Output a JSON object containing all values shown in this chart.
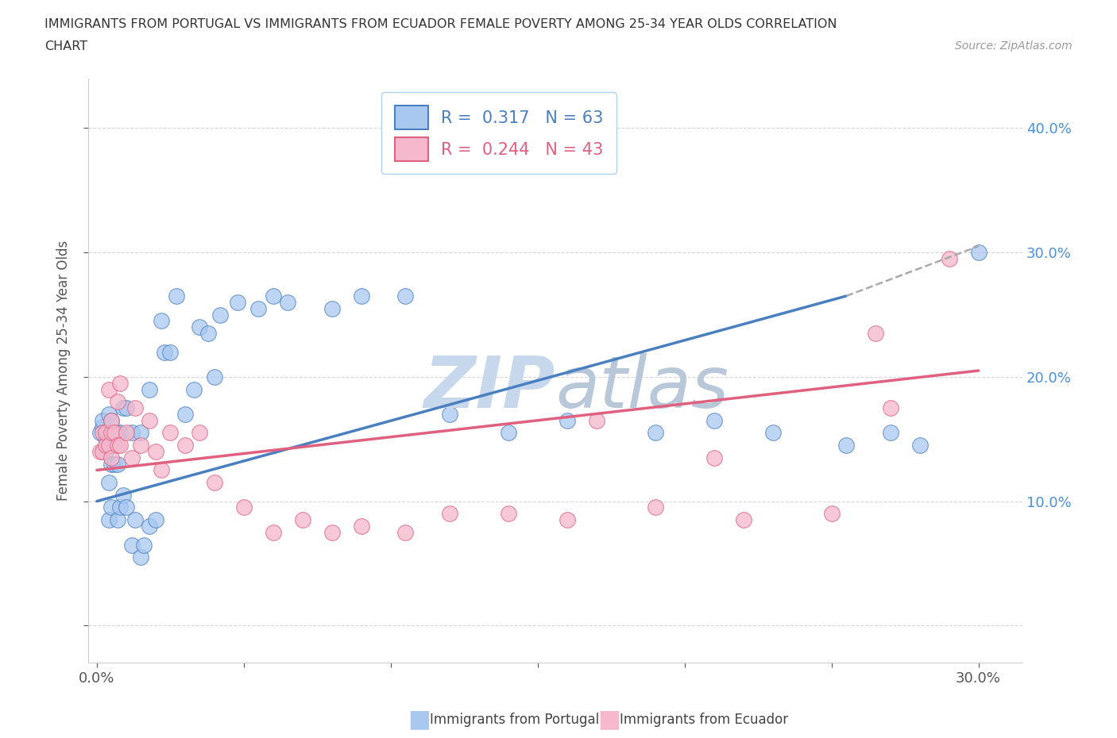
{
  "title_line1": "IMMIGRANTS FROM PORTUGAL VS IMMIGRANTS FROM ECUADOR FEMALE POVERTY AMONG 25-34 YEAR OLDS CORRELATION",
  "title_line2": "CHART",
  "source": "Source: ZipAtlas.com",
  "ylabel": "Female Poverty Among 25-34 Year Olds",
  "xlim": [
    -0.003,
    0.315
  ],
  "ylim": [
    -0.03,
    0.44
  ],
  "xticks": [
    0.0,
    0.05,
    0.1,
    0.15,
    0.2,
    0.25,
    0.3
  ],
  "xtick_labels": [
    "0.0%",
    "",
    "",
    "",
    "",
    "",
    "30.0%"
  ],
  "yticks": [
    0.0,
    0.1,
    0.2,
    0.3,
    0.4
  ],
  "ytick_labels_right": [
    "",
    "10.0%",
    "20.0%",
    "30.0%",
    "40.0%"
  ],
  "R_portugal": 0.317,
  "N_portugal": 63,
  "R_ecuador": 0.244,
  "N_ecuador": 43,
  "color_portugal": "#a8c8f0",
  "color_ecuador": "#f5b8cc",
  "line_color_portugal": "#4a7fc0",
  "line_color_ecuador": "#e06080",
  "watermark_color": "#c8d8ec",
  "port_line_start_x": 0.0,
  "port_line_start_y": 0.1,
  "port_line_solid_end_x": 0.255,
  "port_line_solid_end_y": 0.265,
  "port_line_dash_end_x": 0.3,
  "port_line_dash_end_y": 0.305,
  "ecu_line_start_x": 0.0,
  "ecu_line_start_y": 0.125,
  "ecu_line_end_x": 0.3,
  "ecu_line_end_y": 0.205,
  "portugal_x": [
    0.001,
    0.002,
    0.002,
    0.003,
    0.003,
    0.003,
    0.004,
    0.004,
    0.004,
    0.004,
    0.005,
    0.005,
    0.005,
    0.005,
    0.005,
    0.006,
    0.006,
    0.006,
    0.007,
    0.007,
    0.007,
    0.008,
    0.008,
    0.009,
    0.009,
    0.01,
    0.01,
    0.012,
    0.012,
    0.013,
    0.015,
    0.015,
    0.016,
    0.018,
    0.018,
    0.02,
    0.022,
    0.023,
    0.025,
    0.027,
    0.03,
    0.033,
    0.035,
    0.038,
    0.04,
    0.042,
    0.048,
    0.055,
    0.06,
    0.065,
    0.08,
    0.09,
    0.105,
    0.12,
    0.14,
    0.16,
    0.19,
    0.21,
    0.23,
    0.255,
    0.27,
    0.28,
    0.3
  ],
  "portugal_y": [
    0.155,
    0.16,
    0.165,
    0.14,
    0.15,
    0.155,
    0.085,
    0.115,
    0.155,
    0.17,
    0.095,
    0.13,
    0.145,
    0.155,
    0.165,
    0.13,
    0.145,
    0.155,
    0.085,
    0.13,
    0.155,
    0.095,
    0.155,
    0.105,
    0.175,
    0.095,
    0.175,
    0.065,
    0.155,
    0.085,
    0.055,
    0.155,
    0.065,
    0.08,
    0.19,
    0.085,
    0.245,
    0.22,
    0.22,
    0.265,
    0.17,
    0.19,
    0.24,
    0.235,
    0.2,
    0.25,
    0.26,
    0.255,
    0.265,
    0.26,
    0.255,
    0.265,
    0.265,
    0.17,
    0.155,
    0.165,
    0.155,
    0.165,
    0.155,
    0.145,
    0.155,
    0.145,
    0.3
  ],
  "ecuador_x": [
    0.001,
    0.002,
    0.002,
    0.003,
    0.003,
    0.004,
    0.004,
    0.005,
    0.005,
    0.005,
    0.006,
    0.007,
    0.007,
    0.008,
    0.008,
    0.01,
    0.012,
    0.013,
    0.015,
    0.018,
    0.02,
    0.022,
    0.025,
    0.03,
    0.035,
    0.04,
    0.05,
    0.06,
    0.07,
    0.08,
    0.09,
    0.105,
    0.12,
    0.14,
    0.16,
    0.17,
    0.19,
    0.21,
    0.22,
    0.25,
    0.265,
    0.27,
    0.29
  ],
  "ecuador_y": [
    0.14,
    0.14,
    0.155,
    0.145,
    0.155,
    0.145,
    0.19,
    0.135,
    0.155,
    0.165,
    0.155,
    0.145,
    0.18,
    0.145,
    0.195,
    0.155,
    0.135,
    0.175,
    0.145,
    0.165,
    0.14,
    0.125,
    0.155,
    0.145,
    0.155,
    0.115,
    0.095,
    0.075,
    0.085,
    0.075,
    0.08,
    0.075,
    0.09,
    0.09,
    0.085,
    0.165,
    0.095,
    0.135,
    0.085,
    0.09,
    0.235,
    0.175,
    0.295
  ]
}
